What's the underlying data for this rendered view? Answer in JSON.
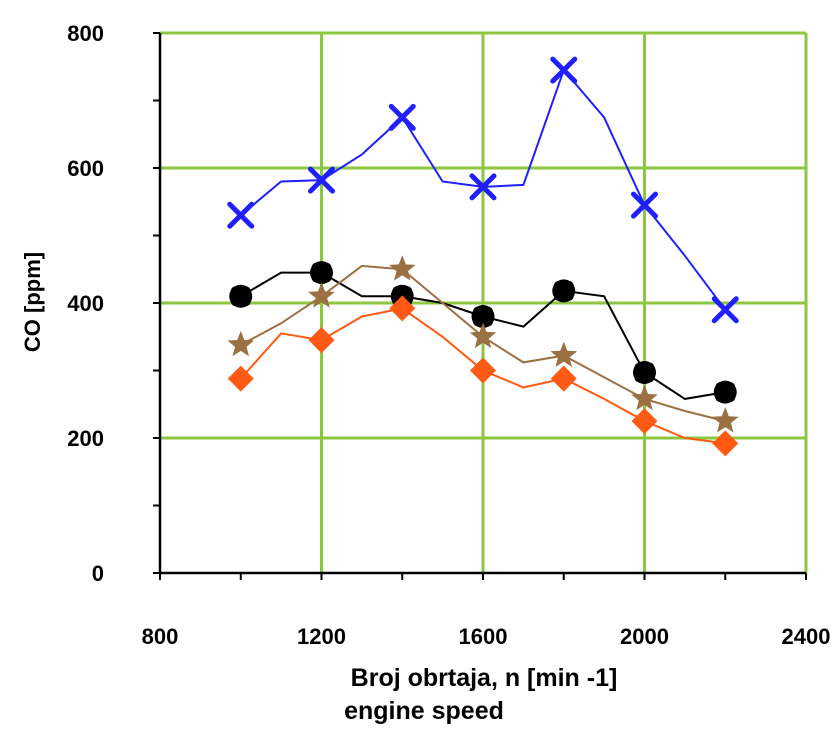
{
  "chart_data": {
    "type": "line",
    "title": "",
    "xlabel": "Broj obrtaja, n [min -1]",
    "xlabel_sub": "engine speed",
    "ylabel": "CO [ppm]",
    "xlim": [
      800,
      2400
    ],
    "ylim": [
      0,
      800
    ],
    "xticks": [
      800,
      1200,
      1600,
      2000,
      2400
    ],
    "yticks": [
      0,
      200,
      400,
      600,
      800
    ],
    "grid": true,
    "grid_color": "#8dc63f",
    "legend": "none",
    "series": [
      {
        "color": "#1f1fff",
        "marker": "x",
        "x": [
          1000,
          1100,
          1200,
          1300,
          1400,
          1500,
          1600,
          1700,
          1800,
          1900,
          2000,
          2100,
          2200
        ],
        "y": [
          530,
          580,
          582,
          620,
          675,
          580,
          572,
          575,
          745,
          675,
          545,
          470,
          390
        ],
        "marked_x": [
          1000,
          1200,
          1400,
          1600,
          1800,
          2000,
          2200
        ]
      },
      {
        "color": "#000000",
        "marker": "circle-square",
        "x": [
          1000,
          1100,
          1200,
          1300,
          1400,
          1500,
          1600,
          1700,
          1800,
          1900,
          2000,
          2100,
          2200
        ],
        "y": [
          410,
          445,
          445,
          410,
          410,
          400,
          380,
          365,
          418,
          410,
          297,
          258,
          268
        ],
        "marked_x": [
          1000,
          1200,
          1400,
          1600,
          1800,
          2000,
          2200
        ]
      },
      {
        "color": "#9b7042",
        "marker": "star",
        "x": [
          1000,
          1100,
          1200,
          1300,
          1400,
          1500,
          1600,
          1700,
          1800,
          1900,
          2000,
          2100,
          2200
        ],
        "y": [
          338,
          370,
          410,
          455,
          450,
          400,
          350,
          312,
          322,
          290,
          258,
          240,
          225
        ],
        "marked_x": [
          1000,
          1200,
          1400,
          1600,
          1800,
          2000,
          2200
        ]
      },
      {
        "color": "#ff5a14",
        "marker": "diamond",
        "x": [
          1000,
          1100,
          1200,
          1300,
          1400,
          1500,
          1600,
          1700,
          1800,
          1900,
          2000,
          2100,
          2200
        ],
        "y": [
          288,
          355,
          345,
          380,
          392,
          350,
          300,
          275,
          288,
          258,
          225,
          200,
          192
        ],
        "marked_x": [
          1000,
          1200,
          1400,
          1600,
          1800,
          2000,
          2200
        ]
      }
    ]
  }
}
